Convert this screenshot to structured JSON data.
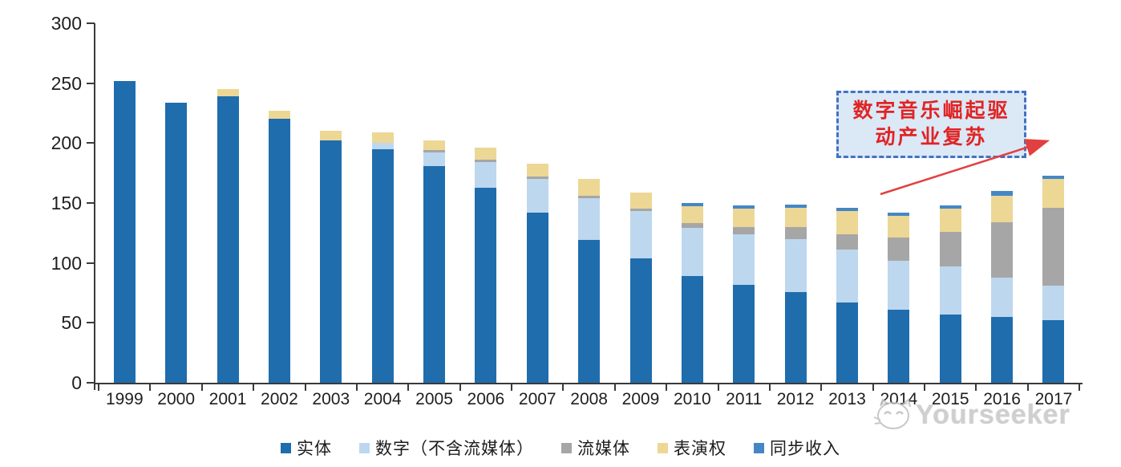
{
  "chart_data": {
    "type": "bar",
    "stacked": true,
    "title": "",
    "xlabel": "",
    "ylabel": "",
    "ylim": [
      0,
      300
    ],
    "yticks": [
      0,
      50,
      100,
      150,
      200,
      250,
      300
    ],
    "grid": false,
    "legend_position": "bottom",
    "categories": [
      "1999",
      "2000",
      "2001",
      "2002",
      "2003",
      "2004",
      "2005",
      "2006",
      "2007",
      "2008",
      "2009",
      "2010",
      "2011",
      "2012",
      "2013",
      "2014",
      "2015",
      "2016",
      "2017"
    ],
    "series": [
      {
        "key": "physical",
        "name": "实体",
        "color": "#1f6dad",
        "values": [
          252,
          234,
          239,
          220,
          202,
          195,
          181,
          163,
          142,
          119,
          104,
          89,
          82,
          76,
          67,
          61,
          57,
          55,
          52
        ]
      },
      {
        "key": "digital",
        "name": "数字（不含流媒体）",
        "color": "#bdd7ee",
        "values": [
          0,
          0,
          0,
          0,
          0,
          5,
          11,
          21,
          28,
          35,
          39,
          40,
          42,
          44,
          44,
          41,
          40,
          33,
          29
        ]
      },
      {
        "key": "streaming",
        "name": "流媒体",
        "color": "#a6a6a6",
        "values": [
          0,
          0,
          0,
          0,
          0,
          0,
          2,
          2,
          2,
          2,
          2,
          4,
          6,
          10,
          13,
          19,
          29,
          46,
          65
        ]
      },
      {
        "key": "performance",
        "name": "表演权",
        "color": "#ecd795",
        "values": [
          0,
          0,
          6,
          7,
          8,
          9,
          8,
          10,
          11,
          14,
          14,
          14,
          15,
          16,
          19,
          18,
          19,
          22,
          24
        ]
      },
      {
        "key": "sync",
        "name": "同步收入",
        "color": "#4587c5",
        "values": [
          0,
          0,
          0,
          0,
          0,
          0,
          0,
          0,
          0,
          0,
          0,
          3,
          3,
          3,
          3,
          3,
          3,
          4,
          3
        ]
      }
    ]
  },
  "annotation": {
    "line1": "数字音乐崛起驱",
    "line2": "动产业复苏",
    "text_color": "#e02424",
    "box_fill": "#dbe8f6",
    "box_border": "#4472c4",
    "arrow_color": "#e24040"
  },
  "watermark": {
    "text": "Yourseeker"
  }
}
